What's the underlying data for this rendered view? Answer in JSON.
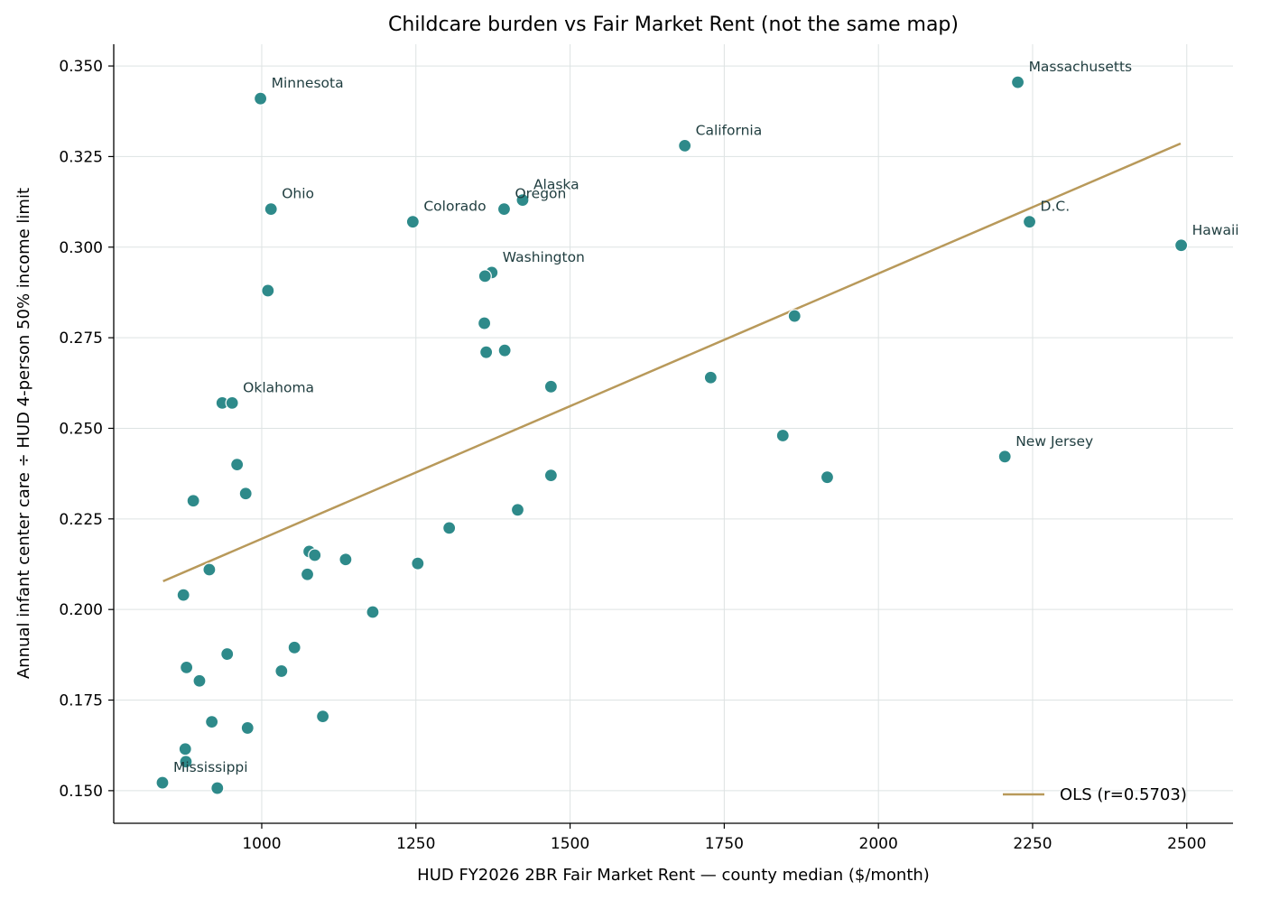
{
  "chart_data": {
    "type": "scatter",
    "title": "Childcare burden vs Fair Market Rent (not the same map)",
    "xlabel": "HUD FY2026 2BR Fair Market Rent — county median ($/month)",
    "ylabel": "Annual infant center care ÷ HUD 4-person 50% income limit",
    "xlim": [
      760,
      2575
    ],
    "ylim": [
      0.141,
      0.356
    ],
    "xticks": [
      1000,
      1250,
      1500,
      1750,
      2000,
      2250,
      2500
    ],
    "yticks": [
      0.15,
      0.175,
      0.2,
      0.225,
      0.25,
      0.275,
      0.3,
      0.325,
      0.35
    ],
    "grid": true,
    "colors": {
      "points": "#2e8a8a",
      "fit": "#b8995a",
      "grid": "#dde3e3",
      "annotation": "#1f3d3f"
    },
    "fit_line": {
      "name": "OLS (r=0.5703)",
      "x": [
        840,
        2490
      ],
      "y": [
        0.2078,
        0.3286
      ]
    },
    "legend_position": "lower-right",
    "points": [
      {
        "x": 998,
        "y": 0.341,
        "label": "Minnesota"
      },
      {
        "x": 2226,
        "y": 0.3455,
        "label": "Massachusetts"
      },
      {
        "x": 1686,
        "y": 0.328,
        "label": "California"
      },
      {
        "x": 1015,
        "y": 0.3105,
        "label": "Ohio"
      },
      {
        "x": 1245,
        "y": 0.307,
        "label": "Colorado"
      },
      {
        "x": 1393,
        "y": 0.3105,
        "label": "Oregon"
      },
      {
        "x": 1423,
        "y": 0.313,
        "label": "Alaska"
      },
      {
        "x": 2245,
        "y": 0.307,
        "label": "D.C."
      },
      {
        "x": 2491,
        "y": 0.3005,
        "label": "Hawaii"
      },
      {
        "x": 1373,
        "y": 0.293,
        "label": "Washington"
      },
      {
        "x": 1362,
        "y": 0.292,
        "label": ""
      },
      {
        "x": 1010,
        "y": 0.288,
        "label": ""
      },
      {
        "x": 1361,
        "y": 0.279,
        "label": ""
      },
      {
        "x": 1364,
        "y": 0.271,
        "label": ""
      },
      {
        "x": 1394,
        "y": 0.2715,
        "label": ""
      },
      {
        "x": 1864,
        "y": 0.281,
        "label": ""
      },
      {
        "x": 1728,
        "y": 0.264,
        "label": ""
      },
      {
        "x": 1469,
        "y": 0.2615,
        "label": ""
      },
      {
        "x": 936,
        "y": 0.257,
        "label": ""
      },
      {
        "x": 952,
        "y": 0.257,
        "label": "Oklahoma"
      },
      {
        "x": 960,
        "y": 0.24,
        "label": ""
      },
      {
        "x": 974,
        "y": 0.232,
        "label": ""
      },
      {
        "x": 889,
        "y": 0.23,
        "label": ""
      },
      {
        "x": 1469,
        "y": 0.237,
        "label": ""
      },
      {
        "x": 1845,
        "y": 0.248,
        "label": ""
      },
      {
        "x": 2205,
        "y": 0.2422,
        "label": "New Jersey"
      },
      {
        "x": 1917,
        "y": 0.2365,
        "label": ""
      },
      {
        "x": 1415,
        "y": 0.2275,
        "label": ""
      },
      {
        "x": 1304,
        "y": 0.2225,
        "label": ""
      },
      {
        "x": 1077,
        "y": 0.216,
        "label": ""
      },
      {
        "x": 1086,
        "y": 0.215,
        "label": ""
      },
      {
        "x": 1136,
        "y": 0.2138,
        "label": ""
      },
      {
        "x": 1253,
        "y": 0.2127,
        "label": ""
      },
      {
        "x": 915,
        "y": 0.211,
        "label": ""
      },
      {
        "x": 1074,
        "y": 0.2097,
        "label": ""
      },
      {
        "x": 873,
        "y": 0.204,
        "label": ""
      },
      {
        "x": 1180,
        "y": 0.1993,
        "label": ""
      },
      {
        "x": 1053,
        "y": 0.1895,
        "label": ""
      },
      {
        "x": 944,
        "y": 0.1877,
        "label": ""
      },
      {
        "x": 878,
        "y": 0.184,
        "label": ""
      },
      {
        "x": 1032,
        "y": 0.183,
        "label": ""
      },
      {
        "x": 899,
        "y": 0.1803,
        "label": ""
      },
      {
        "x": 1099,
        "y": 0.1705,
        "label": ""
      },
      {
        "x": 919,
        "y": 0.169,
        "label": ""
      },
      {
        "x": 977,
        "y": 0.1673,
        "label": ""
      },
      {
        "x": 876,
        "y": 0.1615,
        "label": ""
      },
      {
        "x": 877,
        "y": 0.158,
        "label": ""
      },
      {
        "x": 839,
        "y": 0.1522,
        "label": "Mississippi"
      },
      {
        "x": 928,
        "y": 0.1507,
        "label": ""
      }
    ]
  }
}
